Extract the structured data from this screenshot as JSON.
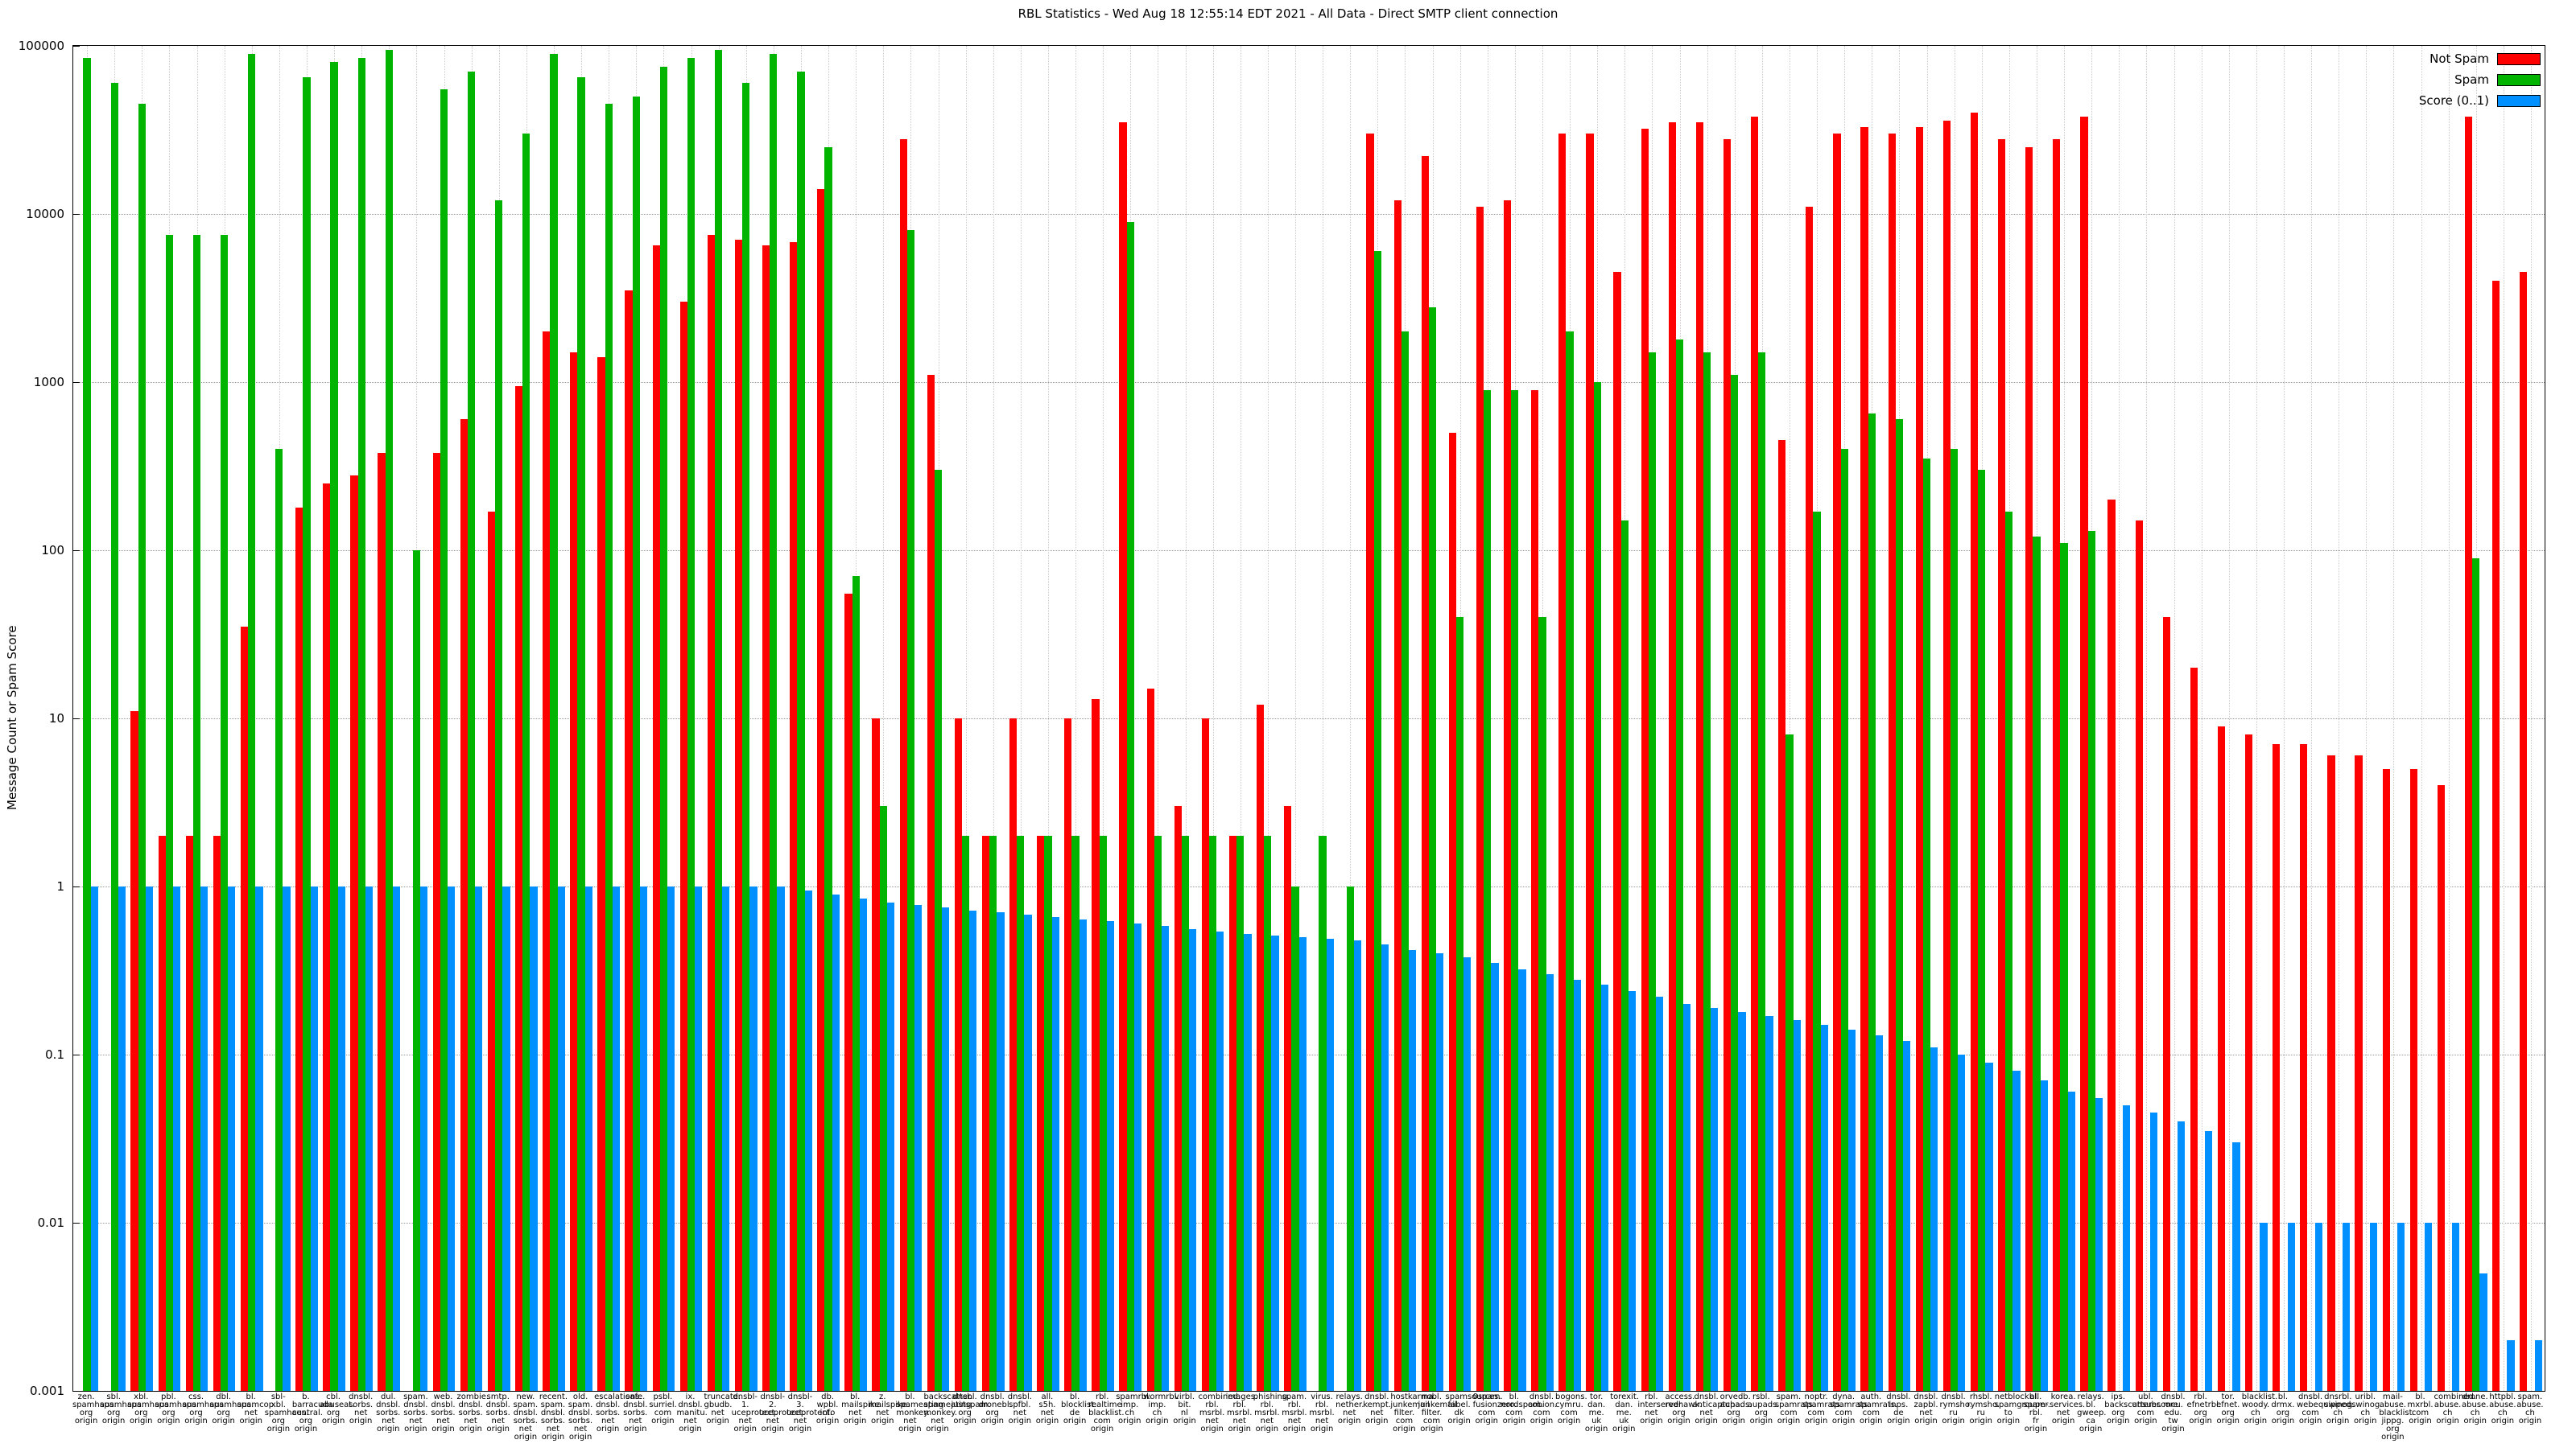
{
  "title": "RBL Statistics - Wed Aug 18 12:55:14 EDT 2021 - All Data - Direct SMTP client connection",
  "ylabel": "Message Count or Spam Score",
  "yticks": [
    {
      "label": "100000",
      "value": 100000
    },
    {
      "label": "10000",
      "value": 10000
    },
    {
      "label": "1000",
      "value": 1000
    },
    {
      "label": "100",
      "value": 100
    },
    {
      "label": "10",
      "value": 10
    },
    {
      "label": "1",
      "value": 1
    },
    {
      "label": "0.1",
      "value": 0.1
    },
    {
      "label": "0.01",
      "value": 0.01
    },
    {
      "label": "0.001",
      "value": 0.001
    }
  ],
  "chart_data": {
    "type": "bar",
    "title": "RBL Statistics - Wed Aug 18 12:55:14 EDT 2021 - All Data - Direct SMTP client connection",
    "xlabel": "",
    "ylabel": "Message Count or Spam Score",
    "y_log_scale": true,
    "ylim": [
      0.001,
      100000
    ],
    "grid": true,
    "legend_position": "top-right",
    "categories": [
      "zen.\nspamhaus.\norg\norigin",
      "sbl.\nspamhaus.\norg\norigin",
      "xbl.\nspamhaus.\norg\norigin",
      "pbl.\nspamhaus.\norg\norigin",
      "css.\nspamhaus.\norg\norigin",
      "dbl.\nspamhaus.\norg\norigin",
      "bl.\nspamcop.\nnet\norigin",
      "sbl-xbl.\nspamhaus.\norg\norigin",
      "b.\nbarracuda\ncentral.\norg\norigin",
      "cbl.\nabuseat.\norg\norigin",
      "dnsbl.\nsorbs.\nnet\norigin",
      "dul.\ndnsbl.\nsorbs.\nnet\norigin",
      "spam.\ndnsbl.\nsorbs.\nnet\norigin",
      "web.\ndnsbl.\nsorbs.\nnet\norigin",
      "zombie.\ndnsbl.\nsorbs.\nnet\norigin",
      "smtp.\ndnsbl.\nsorbs.\nnet\norigin",
      "new.\nspam.\ndnsbl.\nsorbs.\nnet\norigin",
      "recent.\nspam.\ndnsbl.\nsorbs.\nnet\norigin",
      "old.\nspam.\ndnsbl.\nsorbs.\nnet\norigin",
      "escalations.\ndnsbl.\nsorbs.\nnet\norigin",
      "safe.\ndnsbl.\nsorbs.\nnet\norigin",
      "psbl.\nsurriel.\ncom\norigin",
      "ix.\ndnsbl.\nmanitu.\nnet\norigin",
      "truncate.\ngbudb.\nnet\norigin",
      "dnsbl-1.\nuceprotect.\nnet\norigin",
      "dnsbl-2.\nuceprotect.\nnet\norigin",
      "dnsbl-3.\nuceprotect.\nnet\norigin",
      "db.\nwpbl.\ninfo\norigin",
      "bl.\nmailspike.\nnet\norigin",
      "z.\nmailspike.\nnet\norigin",
      "bl.\nspameating\nmonkey.\nnet\norigin",
      "backscatter.\nspameating\nmonkey.\nnet\norigin",
      "dnsbl.\njustspam.\norg\norigin",
      "dnsbl.\ndronebl.\norg\norigin",
      "dnsbl.\nspfbl.\nnet\norigin",
      "all.\ns5h.\nnet\norigin",
      "bl.\nblocklist.\nde\norigin",
      "rbl.\nrealtime\nblacklist.\ncom\norigin",
      "spamrbl.\nimp.\nch\norigin",
      "wormrbl.\nimp.\nch\norigin",
      "virbl.\nbit.\nnl\norigin",
      "combined.\nrbl.\nmsrbl.\nnet\norigin",
      "images.\nrbl.\nmsrbl.\nnet\norigin",
      "phishing.\nrbl.\nmsrbl.\nnet\norigin",
      "spam.\nrbl.\nmsrbl.\nnet\norigin",
      "virus.\nrbl.\nmsrbl.\nnet\norigin",
      "relays.\nnether.\nnet\norigin",
      "dnsbl.\nkempt.\nnet\norigin",
      "hostkarma.\njunkemail\nfilter.\ncom\norigin",
      "nobl.\njunkemail\nfilter.\ncom\norigin",
      "spamsources.\nfabel.\ndk\norigin",
      "0spam.\nfusionzero.\ncom\norigin",
      "bl.\nnordspam.\ncom\norigin",
      "dnsbl.\ncobion.\ncom\norigin",
      "bogons.\ncymru.\ncom\norigin",
      "tor.\ndan.\nme.\nuk\norigin",
      "torexit.\ndan.\nme.\nuk\norigin",
      "rbl.\ninterserver.\nnet\norigin",
      "access.\nredhawk.\norg\norigin",
      "dnsbl.\nanticaptcha.\nnet\norigin",
      "orvedb.\naupads.\norg\norigin",
      "rsbl.\naupads.\norg\norigin",
      "spam.\nspamrats.\ncom\norigin",
      "noptr.\nspamrats.\ncom\norigin",
      "dyna.\nspamrats.\ncom\norigin",
      "auth.\nspamrats.\ncom\norigin",
      "dnsbl.\ninps.\nde\norigin",
      "dnsbl.\nzapbl.\nnet\norigin",
      "dnsbl.\nrymsho.\nru\norigin",
      "rhsbl.\nrymsho.\nru\norigin",
      "netblockbl.\nspamgrouper.\nto\norigin",
      "all.\nspam-rbl.\nfr\norigin",
      "korea.\nservices.\nnet\norigin",
      "relays.\nbl.\ngweep.\nca\norigin",
      "ips.\nbackscatterer.\norg\norigin",
      "ubl.\nunsubscore.\ncom\norigin",
      "dnsbl.\nmcu.\nedu.\ntw\norigin",
      "rbl.\nefnetrbl.\norg\norigin",
      "tor.\nefnet.\norg\norigin",
      "blacklist.\nwoody.\nch\norigin",
      "bl.\ndrmx.\norg\norigin",
      "dnsbl.\nwebequipped.\ncom\norigin",
      "dnsrbl.\nswinog.\nch\norigin",
      "uribl.\nswinog.\nch\norigin",
      "mail-abuse.\nblacklist.\njippg.\norg\norigin",
      "bl.\nmxrbl.\ncom\norigin",
      "combined.\nabuse.\nch\norigin",
      "drone.\nabuse.\nch\norigin",
      "httpbl.\nabuse.\nch\norigin",
      "spam.\nabuse.\nch\norigin"
    ],
    "series": [
      {
        "name": "Not Spam",
        "color": "#ff0000",
        "values": [
          0,
          0,
          11,
          2,
          2,
          2,
          35,
          0,
          180,
          250,
          280,
          380,
          0,
          380,
          600,
          170,
          950,
          2000,
          1500,
          1400,
          3500,
          6500,
          3000,
          7500,
          7000,
          6500,
          6800,
          14000,
          55,
          10,
          28000,
          1100,
          10,
          2,
          10,
          2,
          10,
          13,
          35000,
          15,
          3,
          10,
          2,
          12,
          3,
          0,
          0,
          30000,
          12000,
          22000,
          500,
          11000,
          12000,
          900,
          30000,
          30000,
          4500,
          32000,
          35000,
          35000,
          28000,
          38000,
          450,
          11000,
          30000,
          33000,
          30000,
          33000,
          36000,
          40000,
          28000,
          25000,
          28000,
          38000,
          200,
          150,
          40,
          20,
          9,
          8,
          7,
          7,
          6,
          6,
          5,
          5,
          4,
          38000,
          4000,
          4500
        ]
      },
      {
        "name": "Spam",
        "color": "#00b400",
        "values": [
          85000,
          60000,
          45000,
          7500,
          7500,
          7500,
          90000,
          400,
          65000,
          80000,
          85000,
          95000,
          100,
          55000,
          70000,
          12000,
          30000,
          90000,
          65000,
          45000,
          50000,
          75000,
          85000,
          95000,
          60000,
          90000,
          70000,
          25000,
          70,
          3,
          8000,
          300,
          2,
          2,
          2,
          2,
          2,
          2,
          9000,
          2,
          2,
          2,
          2,
          2,
          1,
          2,
          1,
          6000,
          2000,
          2800,
          40,
          900,
          900,
          40,
          2000,
          1000,
          150,
          1500,
          1800,
          1500,
          1100,
          1500,
          8,
          170,
          400,
          650,
          600,
          350,
          400,
          300,
          170,
          120,
          110,
          130,
          0,
          0,
          0,
          0,
          0,
          0,
          0,
          0,
          0,
          0,
          0,
          0,
          0,
          90,
          0,
          0
        ]
      },
      {
        "name": "Score (0..1)",
        "color": "#0090ff",
        "values": [
          1,
          1,
          1,
          1,
          1,
          1,
          1,
          1,
          1,
          1,
          1,
          1,
          1,
          1,
          1,
          1,
          1,
          1,
          1,
          1,
          1,
          1,
          1,
          1,
          1,
          1,
          0.95,
          0.9,
          0.85,
          0.8,
          0.78,
          0.75,
          0.72,
          0.7,
          0.68,
          0.66,
          0.64,
          0.62,
          0.6,
          0.58,
          0.56,
          0.54,
          0.52,
          0.51,
          0.5,
          0.49,
          0.48,
          0.45,
          0.42,
          0.4,
          0.38,
          0.35,
          0.32,
          0.3,
          0.28,
          0.26,
          0.24,
          0.22,
          0.2,
          0.19,
          0.18,
          0.17,
          0.16,
          0.15,
          0.14,
          0.13,
          0.12,
          0.11,
          0.1,
          0.09,
          0.08,
          0.07,
          0.06,
          0.055,
          0.05,
          0.045,
          0.04,
          0.035,
          0.03,
          0.01,
          0.01,
          0.01,
          0.01,
          0.01,
          0.01,
          0.01,
          0.01,
          0.005,
          0.002,
          0.002
        ]
      }
    ]
  }
}
